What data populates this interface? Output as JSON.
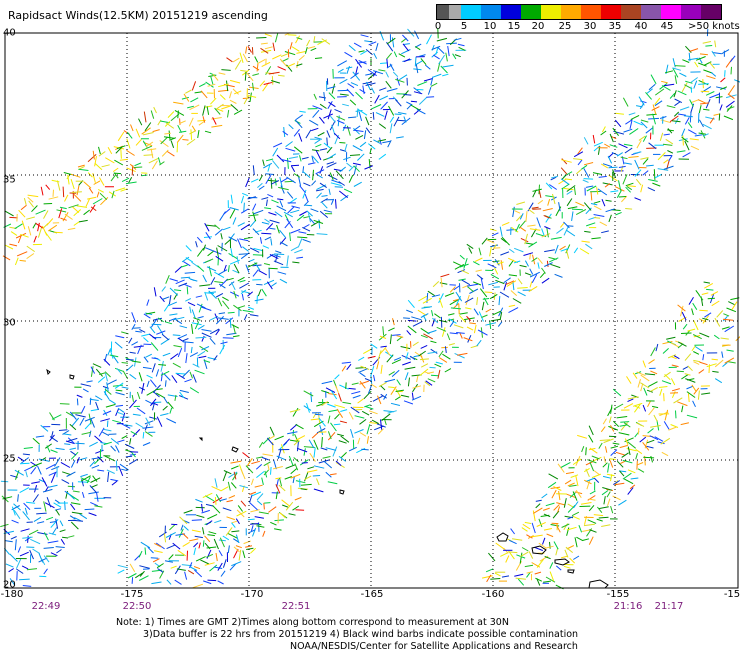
{
  "title": "Rapidsact Winds(12.5KM) 20151219 ascending",
  "scale": {
    "labels": [
      "0",
      "5",
      "10",
      "15",
      "20",
      "25",
      "30",
      "35",
      "40",
      "45",
      ">50 knots"
    ],
    "colors": [
      "#555555",
      "#aaaaaa",
      "#00ccff",
      "#0088ee",
      "#0000dd",
      "#00aa00",
      "#eeee00",
      "#ffaa00",
      "#ff5500",
      "#ee0000",
      "#aa4422",
      "#8855aa",
      "#ff00ff",
      "#9900bb",
      "#660066"
    ]
  },
  "axes": {
    "lat_labels": [
      "40",
      "35",
      "30",
      "25",
      "20"
    ],
    "lon_labels": [
      "-180",
      "-175",
      "-170",
      "-165",
      "-160",
      "-155",
      "-15"
    ],
    "lat_range": [
      20,
      40
    ],
    "lon_range": [
      -180,
      -150
    ]
  },
  "times": [
    "22:49",
    "22:50",
    "22:51",
    "21:16",
    "21:17"
  ],
  "notes": {
    "line1": "Note: 1) Times are GMT 2)Times along bottom correspond to measurement at 30N",
    "line2": "3)Data buffer is 22 hrs from 20151219 4) Black wind barbs indicate possible contamination",
    "line3": "NOAA/NESDIS/Center for Satellite Applications and Research"
  }
}
